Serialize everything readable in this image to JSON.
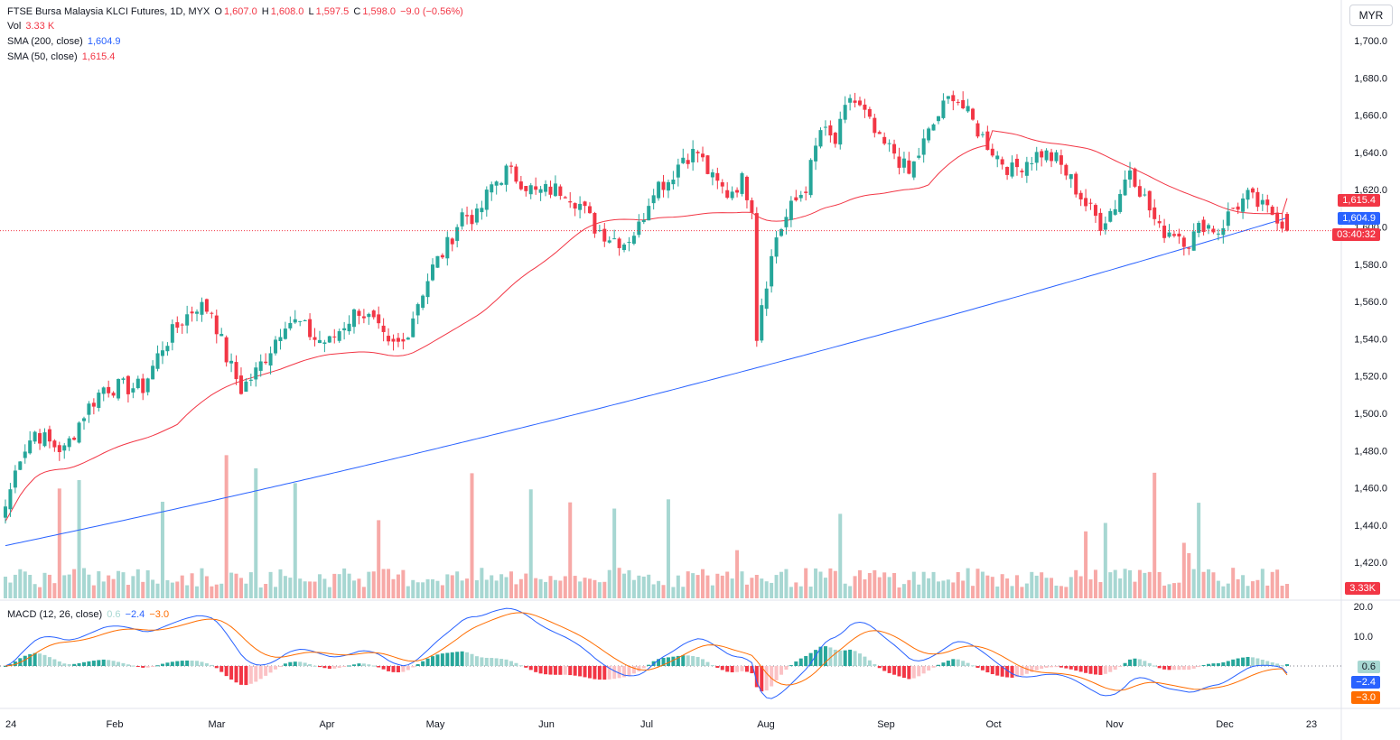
{
  "header": {
    "symbol": "FTSE Bursa Malaysia KLCI Futures, 1D, MYX",
    "o_label": "O",
    "o_value": "1,607.0",
    "h_label": "H",
    "h_value": "1,608.0",
    "l_label": "L",
    "l_value": "1,597.5",
    "c_label": "C",
    "c_value": "1,598.0",
    "change": "−9.0 (−0.56%)",
    "vol_label": "Vol",
    "vol_value": "3.33 K",
    "sma200_label": "SMA (200, close)",
    "sma200_value": "1,604.9",
    "sma50_label": "SMA (50, close)",
    "sma50_value": "1,615.4"
  },
  "macd_legend": {
    "label": "MACD (12, 26, close)",
    "hist": "0.6",
    "macd": "−2.4",
    "signal": "−3.0"
  },
  "currency": "MYR",
  "price_tags": {
    "sma50": "1,615.4",
    "sma200": "1,604.9",
    "countdown": "03:40:32",
    "volume": "3.33K",
    "macd_hist": "0.6",
    "macd": "−2.4",
    "signal": "−3.0"
  },
  "colors": {
    "up": "#26a69a",
    "down": "#f23645",
    "sma200": "#2962ff",
    "sma50": "#f23645",
    "signal": "#ff6d00"
  },
  "chart_data": {
    "type": "candlestick",
    "price_axis_ticks": [
      "1,700.0",
      "1,680.0",
      "1,660.0",
      "1,640.0",
      "1,620.0",
      "1,600.0",
      "1,580.0",
      "1,560.0",
      "1,540.0",
      "1,520.0",
      "1,500.0",
      "1,480.0",
      "1,460.0",
      "1,440.0",
      "1,420.0"
    ],
    "price_ylim": [
      1410,
      1710
    ],
    "macd_axis_ticks": [
      "20.0",
      "10.0"
    ],
    "macd_ylim": [
      -15,
      22
    ],
    "x_ticks": [
      "24",
      "Feb",
      "Mar",
      "Apr",
      "May",
      "Jun",
      "Jul",
      "Aug",
      "Sep",
      "Oct",
      "Nov",
      "Dec",
      "23"
    ],
    "close_anchors": [
      [
        0,
        1450
      ],
      [
        3,
        1478
      ],
      [
        6,
        1490
      ],
      [
        9,
        1484
      ],
      [
        12,
        1480
      ],
      [
        16,
        1500
      ],
      [
        20,
        1514
      ],
      [
        24,
        1514
      ],
      [
        28,
        1514
      ],
      [
        32,
        1536
      ],
      [
        36,
        1550
      ],
      [
        39,
        1558
      ],
      [
        42,
        1555
      ],
      [
        45,
        1530
      ],
      [
        48,
        1513
      ],
      [
        51,
        1522
      ],
      [
        54,
        1535
      ],
      [
        57,
        1550
      ],
      [
        60,
        1548
      ],
      [
        63,
        1540
      ],
      [
        66,
        1538
      ],
      [
        69,
        1548
      ],
      [
        72,
        1556
      ],
      [
        75,
        1548
      ],
      [
        78,
        1535
      ],
      [
        81,
        1538
      ],
      [
        84,
        1560
      ],
      [
        87,
        1578
      ],
      [
        90,
        1590
      ],
      [
        93,
        1607
      ],
      [
        96,
        1605
      ],
      [
        99,
        1622
      ],
      [
        102,
        1630
      ],
      [
        105,
        1625
      ],
      [
        108,
        1618
      ],
      [
        111,
        1620
      ],
      [
        114,
        1620
      ],
      [
        117,
        1612
      ],
      [
        120,
        1600
      ],
      [
        123,
        1595
      ],
      [
        126,
        1592
      ],
      [
        129,
        1600
      ],
      [
        132,
        1622
      ],
      [
        135,
        1625
      ],
      [
        138,
        1638
      ],
      [
        141,
        1640
      ],
      [
        144,
        1625
      ],
      [
        147,
        1618
      ],
      [
        150,
        1625
      ],
      [
        152,
        1612
      ],
      [
        153,
        1542
      ],
      [
        154,
        1560
      ],
      [
        157,
        1595
      ],
      [
        160,
        1610
      ],
      [
        163,
        1622
      ],
      [
        166,
        1652
      ],
      [
        169,
        1645
      ],
      [
        172,
        1670
      ],
      [
        175,
        1660
      ],
      [
        178,
        1645
      ],
      [
        181,
        1640
      ],
      [
        184,
        1628
      ],
      [
        187,
        1645
      ],
      [
        190,
        1660
      ],
      [
        193,
        1672
      ],
      [
        196,
        1660
      ],
      [
        199,
        1648
      ],
      [
        202,
        1638
      ],
      [
        205,
        1630
      ],
      [
        208,
        1636
      ],
      [
        211,
        1640
      ],
      [
        214,
        1636
      ],
      [
        217,
        1625
      ],
      [
        220,
        1612
      ],
      [
        223,
        1602
      ],
      [
        226,
        1612
      ],
      [
        229,
        1632
      ],
      [
        232,
        1615
      ],
      [
        235,
        1598
      ],
      [
        238,
        1598
      ],
      [
        241,
        1592
      ],
      [
        244,
        1602
      ],
      [
        247,
        1598
      ],
      [
        250,
        1610
      ],
      [
        253,
        1616
      ],
      [
        256,
        1610
      ],
      [
        259,
        1606
      ],
      [
        261,
        1598
      ]
    ],
    "sma200_start": 1429,
    "sma200_end": 1604.9,
    "sma50_start": 1452,
    "sma50_end": 1615.4,
    "last_close": 1598.0,
    "macd_last": -2.4,
    "signal_last": -3.0,
    "hist_last": 0.6
  }
}
